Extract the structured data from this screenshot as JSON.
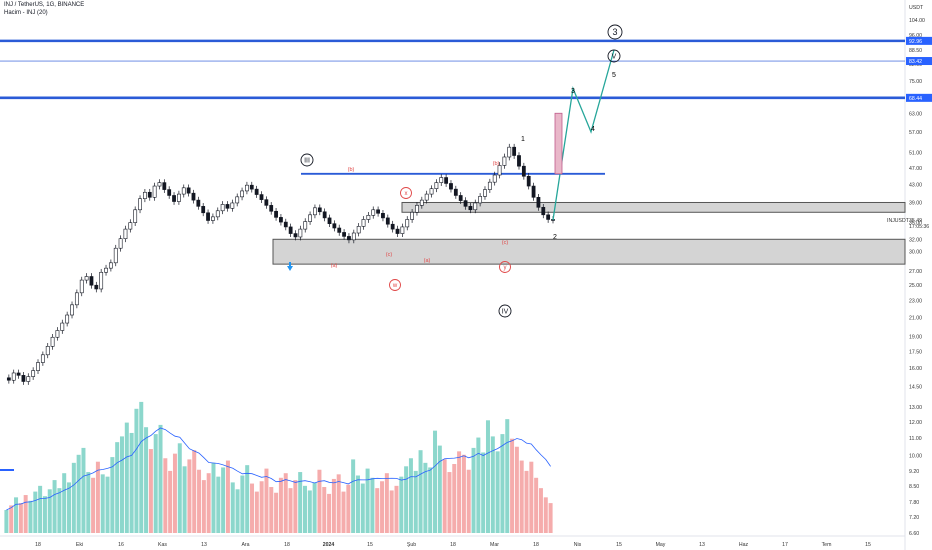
{
  "header": {
    "title": "INJ / TetherUS, 1G, BINANCE",
    "indicator": "Hacim - INJ (20)"
  },
  "chart_data": {
    "type": "candlestick",
    "price_unit": "USDT",
    "y_axis_ticks": [
      "104.00",
      "96.00",
      "88.50",
      "82.00",
      "75.00",
      "69.00",
      "63.00",
      "57.00",
      "51.00",
      "47.00",
      "43.00",
      "39.00",
      "35.00",
      "32.00",
      "30.00",
      "27.00",
      "25.00",
      "23.00",
      "21.00",
      "19.00",
      "17.50",
      "16.00",
      "14.50",
      "13.00",
      "12.00",
      "11.00",
      "10.00",
      "9.20",
      "8.50",
      "7.80",
      "7.20",
      "6.60"
    ],
    "x_axis_ticks": [
      "18",
      "Eki",
      "16",
      "Kas",
      "13",
      "Ara",
      "18",
      "2024",
      "15",
      "Şub",
      "18",
      "Mar",
      "18",
      "Nis",
      "15",
      "May",
      "13",
      "Haz",
      "17",
      "Tem",
      "15"
    ],
    "horizontal_levels": [
      {
        "price": 92.96,
        "label": "92.96",
        "style": "thick"
      },
      {
        "price": 83.42,
        "label": "83.42",
        "style": "thin"
      },
      {
        "price": 68.44,
        "label": "68.44",
        "style": "thick"
      }
    ],
    "current": {
      "symbol": "INJUSDT",
      "price": "35.49",
      "countdown": "17:05:36"
    },
    "zones": [
      {
        "name": "upper support zone",
        "from": 37.0,
        "to": 39.0
      },
      {
        "name": "lower support zone",
        "from": 28.0,
        "to": 32.0
      }
    ],
    "resistance_line": {
      "price": 45.5
    },
    "wave_labels": {
      "degree": [
        "3",
        "III",
        "IV",
        "V"
      ],
      "minor": [
        "1",
        "2",
        "3",
        "4",
        "5"
      ],
      "corrective": [
        "(a)",
        "(b)",
        "(c)",
        "x",
        "w",
        "y"
      ]
    },
    "price_path": [
      15.2,
      15.0,
      15.6,
      15.4,
      14.9,
      15.3,
      15.8,
      16.5,
      17.2,
      18.0,
      18.9,
      19.6,
      20.4,
      21.3,
      22.5,
      24.0,
      25.7,
      26.2,
      25.0,
      24.5,
      26.8,
      27.4,
      28.2,
      30.5,
      32.1,
      33.8,
      35.0,
      37.5,
      39.8,
      41.2,
      40.1,
      42.6,
      43.4,
      41.8,
      40.5,
      39.2,
      40.8,
      42.2,
      41.0,
      39.5,
      38.2,
      36.9,
      35.4,
      36.1,
      37.3,
      38.6,
      37.8,
      38.9,
      40.2,
      41.5,
      42.8,
      41.9,
      40.7,
      39.6,
      38.4,
      37.2,
      36.0,
      35.1,
      34.2,
      33.0,
      32.4,
      33.8,
      35.2,
      36.5,
      37.9,
      37.1,
      35.9,
      34.8,
      34.0,
      33.2,
      32.5,
      31.9,
      33.1,
      34.3,
      35.6,
      36.4,
      37.5,
      36.8,
      35.9,
      34.7,
      33.8,
      33.0,
      34.2,
      35.6,
      37.0,
      38.4,
      39.5,
      40.8,
      42.0,
      43.4,
      44.6,
      43.2,
      41.9,
      40.5,
      39.4,
      38.2,
      37.5,
      38.9,
      40.3,
      41.8,
      43.5,
      45.2,
      47.6,
      49.8,
      52.5,
      50.2,
      47.4,
      44.9,
      42.6,
      40.1,
      38.0,
      36.5,
      35.6,
      35.5
    ],
    "projection_path": [
      35.5,
      72.0,
      57.0,
      88.5
    ],
    "volume_path": [
      2.0,
      2.4,
      3.1,
      2.6,
      3.3,
      2.8,
      3.6,
      4.1,
      3.2,
      3.8,
      4.6,
      3.9,
      5.2,
      4.4,
      6.1,
      6.8,
      7.4,
      5.3,
      4.8,
      6.2,
      5.1,
      4.9,
      6.6,
      7.9,
      8.4,
      9.6,
      8.7,
      10.8,
      11.4,
      9.2,
      7.3,
      8.6,
      9.4,
      6.5,
      5.4,
      6.9,
      7.8,
      5.8,
      6.4,
      7.2,
      5.5,
      4.6,
      5.2,
      6.1,
      4.9,
      5.7,
      6.3,
      4.4,
      3.8,
      5.0,
      5.9,
      4.3,
      3.6,
      4.5,
      5.6,
      4.0,
      3.5,
      4.8,
      5.2,
      3.9,
      4.6,
      5.3,
      4.1,
      3.7,
      4.4,
      5.5,
      4.0,
      3.4,
      4.7,
      5.1,
      3.6,
      4.2,
      6.4,
      5.0,
      4.3,
      5.6,
      4.8,
      3.9,
      4.5,
      5.2,
      3.7,
      4.1,
      4.9,
      5.8,
      6.5,
      5.4,
      7.2,
      6.1,
      5.7,
      8.9,
      7.6,
      6.4,
      5.3,
      6.0,
      7.1,
      6.8,
      5.5,
      7.4,
      8.3,
      7.0,
      9.8,
      8.4,
      7.1,
      8.6,
      9.9,
      8.2,
      7.5,
      6.3,
      5.4,
      6.2,
      4.8,
      3.9,
      3.1,
      2.6
    ]
  }
}
